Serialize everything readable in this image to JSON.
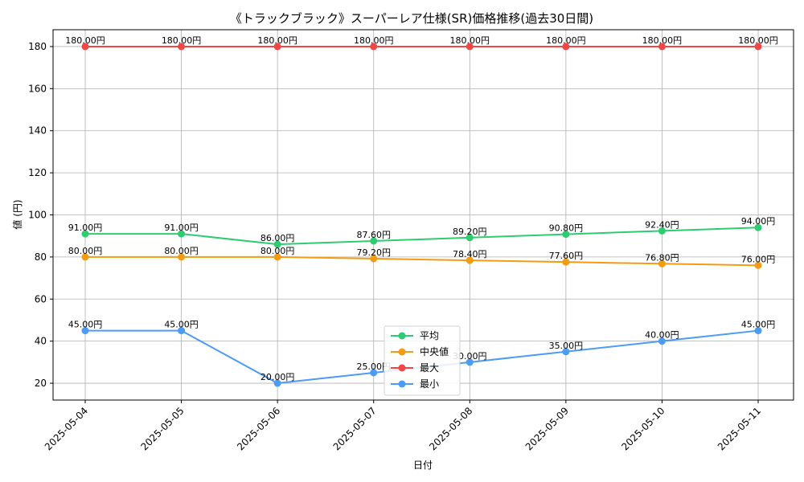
{
  "chart_data": {
    "type": "line",
    "title": "《トラックブラック》スーパーレア仕様(SR)価格推移(過去30日間)",
    "xlabel": "日付",
    "ylabel": "値 (円)",
    "categories": [
      "2025-05-04",
      "2025-05-05",
      "2025-05-06",
      "2025-05-07",
      "2025-05-08",
      "2025-05-09",
      "2025-05-10",
      "2025-05-11"
    ],
    "ylim": [
      12,
      188
    ],
    "yticks": [
      20,
      40,
      60,
      80,
      100,
      120,
      140,
      160,
      180
    ],
    "grid": true,
    "legend_position": "bottom-center",
    "series": [
      {
        "name": "平均",
        "color": "#2ecc71",
        "values": [
          91.0,
          91.0,
          86.0,
          87.6,
          89.2,
          90.8,
          92.4,
          94.0
        ],
        "labels": [
          "91.00円",
          "91.00円",
          "86.00円",
          "87.60円",
          "89.20円",
          "90.80円",
          "92.40円",
          "94.00円"
        ]
      },
      {
        "name": "中央値",
        "color": "#f39c12",
        "values": [
          80.0,
          80.0,
          80.0,
          79.2,
          78.4,
          77.6,
          76.8,
          76.0
        ],
        "labels": [
          "80.00円",
          "80.00円",
          "80.00円",
          "79.20円",
          "78.40円",
          "77.60円",
          "76.80円",
          "76.00円"
        ]
      },
      {
        "name": "最大",
        "color": "#f04646",
        "values": [
          180,
          180,
          180,
          180,
          180,
          180,
          180,
          180
        ],
        "labels": [
          "180.00円",
          "180.00円",
          "180.00円",
          "180.00円",
          "180.00円",
          "180.00円",
          "180.00円",
          "180.00円"
        ]
      },
      {
        "name": "最小",
        "color": "#4c9bf5",
        "values": [
          45.0,
          45.0,
          20.0,
          25.0,
          30.0,
          35.0,
          40.0,
          45.0
        ],
        "labels": [
          "45.00円",
          "45.00円",
          "20.00円",
          "25.00円",
          "30.00円",
          "35.00円",
          "40.00円",
          "45.00円"
        ]
      }
    ]
  }
}
